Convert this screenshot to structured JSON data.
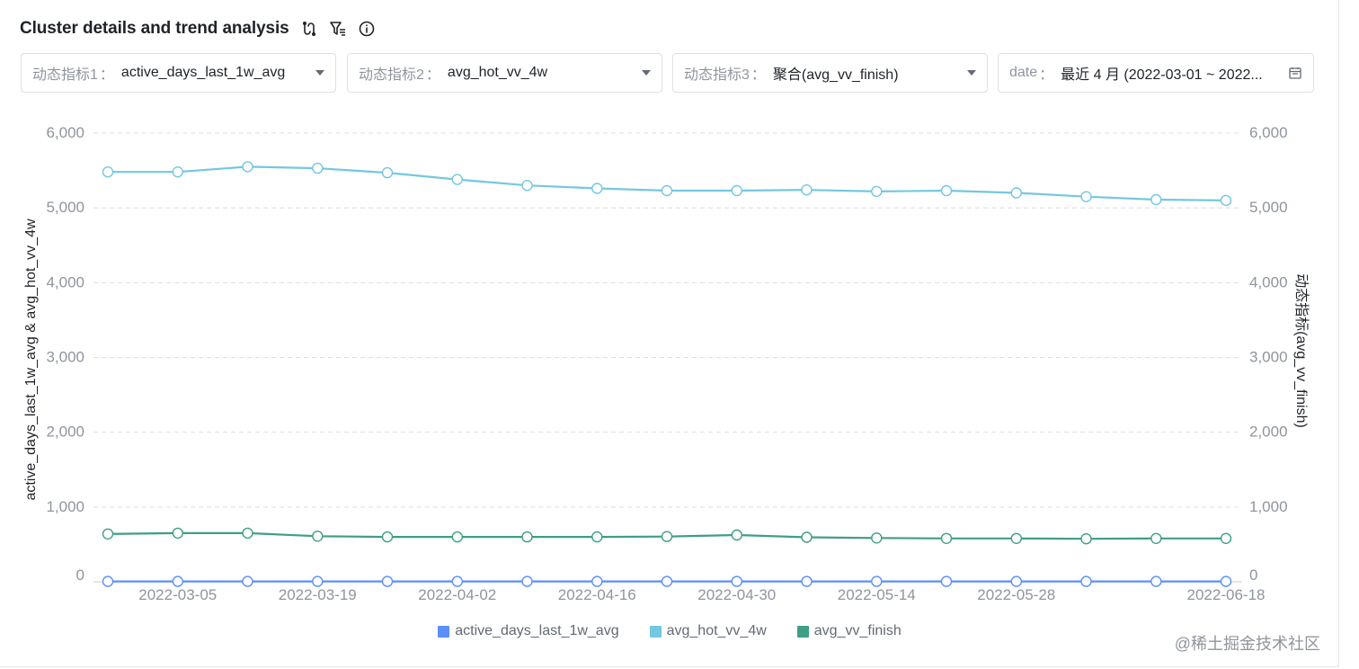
{
  "header": {
    "title": "Cluster details and trend analysis",
    "icons": [
      "swap-icon",
      "filter-list-icon",
      "info-icon"
    ]
  },
  "filters": [
    {
      "label": "动态指标1",
      "sep": "：",
      "value": "active_days_last_1w_avg",
      "control": "dropdown"
    },
    {
      "label": "动态指标2",
      "sep": "：",
      "value": "avg_hot_vv_4w",
      "control": "dropdown"
    },
    {
      "label": "动态指标3",
      "sep": "：",
      "value": "聚合(avg_vv_finish)",
      "control": "dropdown"
    },
    {
      "label": "date",
      "sep": "：",
      "value": "最近 4 月 (2022-03-01 ~ 2022...",
      "control": "calendar"
    }
  ],
  "credit": "@稀土掘金技术社区",
  "colors": {
    "active_days_last_1w_avg": "#5b8ff9",
    "avg_hot_vv_4w": "#74c7e0",
    "avg_vv_finish": "#3e9e86",
    "grid": "#dcdee3",
    "axis_text": "#8f959e"
  },
  "chart_data": {
    "type": "line",
    "x_tick_labels": [
      "2022-03-05",
      "2022-03-19",
      "2022-04-02",
      "2022-04-16",
      "2022-04-30",
      "2022-05-14",
      "2022-05-28",
      "2022-06-18"
    ],
    "x": [
      "2022-02-26",
      "2022-03-05",
      "2022-03-12",
      "2022-03-19",
      "2022-03-26",
      "2022-04-02",
      "2022-04-09",
      "2022-04-16",
      "2022-04-23",
      "2022-04-30",
      "2022-05-07",
      "2022-05-14",
      "2022-05-21",
      "2022-05-28",
      "2022-06-04",
      "2022-06-11",
      "2022-06-18"
    ],
    "ylabel_left": "active_days_last_1w_avg & avg_hot_vv_4w",
    "ylabel_right": "动态指标(avg_vv_finish)",
    "yticks": [
      0,
      1000,
      2000,
      3000,
      4000,
      5000,
      6000
    ],
    "ytick_labels": [
      "0",
      "1,000",
      "2,000",
      "3,000",
      "4,000",
      "5,000",
      "6,000"
    ],
    "ylim_left": [
      0,
      6000
    ],
    "ylim_right": [
      0,
      6000
    ],
    "grid": true,
    "legend_position": "bottom-center",
    "series": [
      {
        "name": "active_days_last_1w_avg",
        "axis": "left",
        "values": [
          5,
          5,
          5,
          5,
          5,
          5,
          5,
          5,
          5,
          5,
          5,
          5,
          5,
          5,
          5,
          5,
          5
        ]
      },
      {
        "name": "avg_hot_vv_4w",
        "axis": "left",
        "values": [
          5480,
          5480,
          5550,
          5530,
          5470,
          5380,
          5300,
          5260,
          5230,
          5230,
          5240,
          5220,
          5230,
          5200,
          5150,
          5110,
          5100
        ]
      },
      {
        "name": "avg_vv_finish",
        "axis": "right",
        "values": [
          640,
          650,
          650,
          610,
          600,
          600,
          600,
          600,
          605,
          625,
          595,
          585,
          580,
          580,
          575,
          580,
          580
        ]
      }
    ]
  }
}
